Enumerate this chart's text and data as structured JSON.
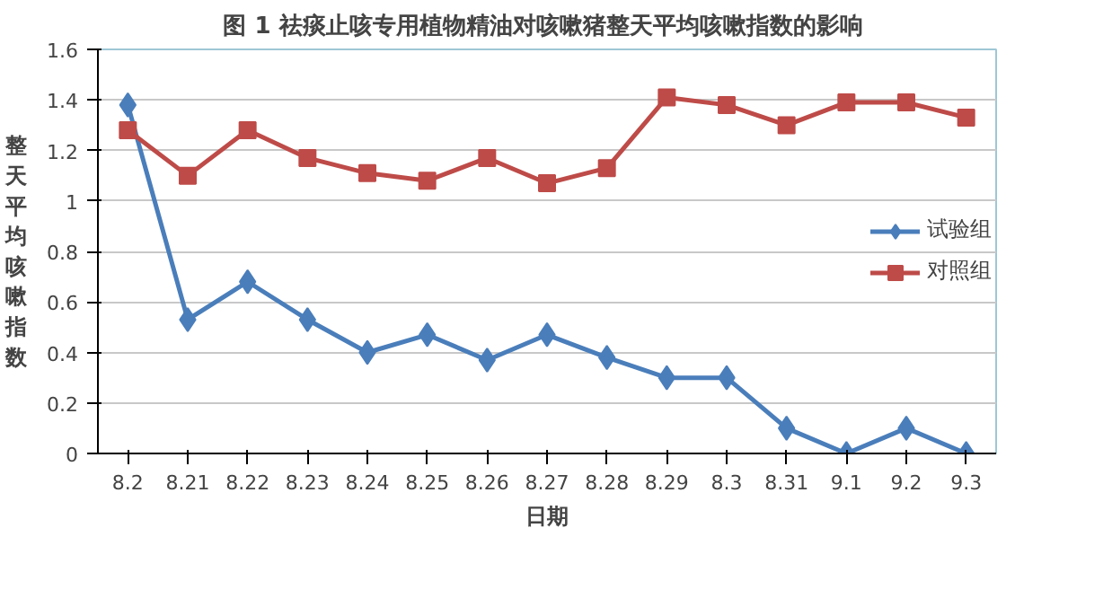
{
  "chart_data": {
    "type": "line",
    "title": "图 1  祛痰止咳专用植物精油对咳嗽猪整天平均咳嗽指数的影响",
    "xlabel": "日期",
    "ylabel": "整天平均咳嗽指数",
    "categories": [
      "8.2",
      "8.21",
      "8.22",
      "8.23",
      "8.24",
      "8.25",
      "8.26",
      "8.27",
      "8.28",
      "8.29",
      "8.3",
      "8.31",
      "9.1",
      "9.2",
      "9.3"
    ],
    "series": [
      {
        "name": "试验组",
        "color": "#4a7ebb",
        "marker": "diamond",
        "values": [
          1.38,
          0.53,
          0.68,
          0.53,
          0.4,
          0.47,
          0.37,
          0.47,
          0.38,
          0.3,
          0.3,
          0.1,
          0,
          0.1,
          0
        ]
      },
      {
        "name": "对照组",
        "color": "#be4b48",
        "marker": "square",
        "values": [
          1.28,
          1.1,
          1.28,
          1.17,
          1.11,
          1.08,
          1.17,
          1.07,
          1.13,
          1.41,
          1.38,
          1.3,
          1.39,
          1.39,
          1.33
        ]
      }
    ],
    "ylim": [
      0,
      1.6
    ],
    "yticks": [
      0,
      0.2,
      0.4,
      0.6,
      0.8,
      1,
      1.2,
      1.4,
      1.6
    ],
    "grid": "y",
    "legend": "right",
    "line_style": "solid"
  }
}
